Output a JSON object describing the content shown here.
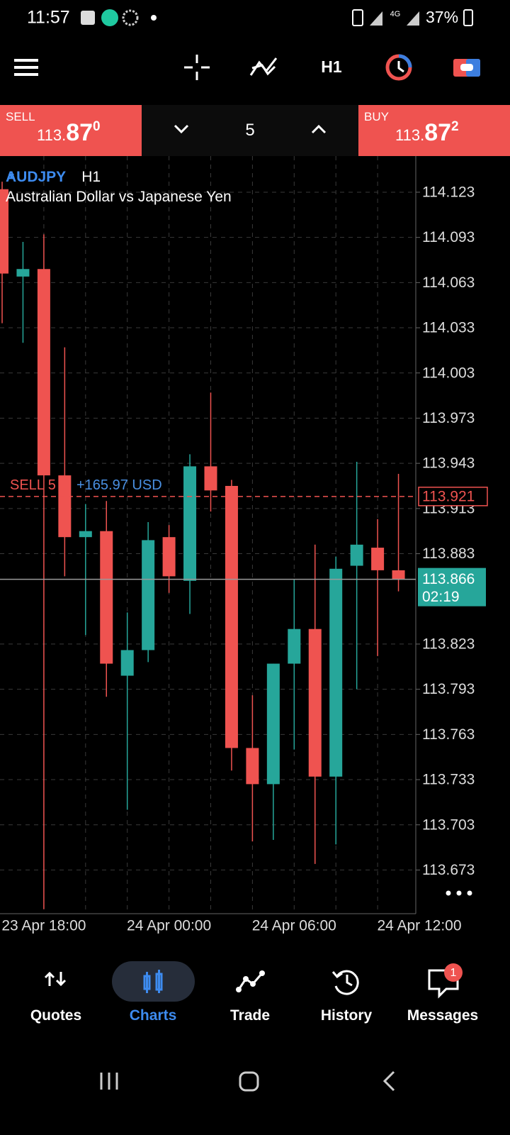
{
  "status_bar": {
    "time": "11:57",
    "network": "4G",
    "battery": "37%"
  },
  "toolbar": {
    "timeframe": "H1"
  },
  "trade_panel": {
    "sell_label": "SELL",
    "sell_price": [
      "113.",
      "87",
      "0"
    ],
    "volume": "5",
    "buy_label": "BUY",
    "buy_price": [
      "113.",
      "87",
      "2"
    ]
  },
  "chart_data": {
    "type": "candlestick",
    "symbol": "AUDJPY",
    "timeframe": "H1",
    "description": "Australian Dollar vs Japanese Yen",
    "categories": [
      null,
      null,
      "23 Apr 18:00",
      null,
      null,
      null,
      null,
      null,
      "24 Apr 00:00",
      null,
      null,
      null,
      null,
      null,
      "24 Apr 06:00",
      null,
      null,
      null,
      null,
      null,
      "24 Apr 12:00"
    ],
    "open": [
      114.125,
      114.067,
      114.072,
      113.935,
      113.894,
      113.898,
      113.802,
      113.819,
      113.894,
      113.865,
      113.941,
      113.928,
      113.754,
      113.73,
      113.81,
      113.833,
      113.735,
      113.875,
      113.887,
      113.872,
      null
    ],
    "high": [
      114.13,
      114.09,
      114.095,
      114.02,
      113.916,
      113.918,
      113.844,
      113.904,
      113.902,
      113.949,
      113.99,
      113.932,
      113.789,
      113.81,
      113.866,
      113.889,
      113.881,
      113.944,
      113.906,
      113.936,
      null
    ],
    "low": [
      114.036,
      114.023,
      113.647,
      113.868,
      113.829,
      113.788,
      113.713,
      113.811,
      113.857,
      113.843,
      113.911,
      113.739,
      113.692,
      113.693,
      113.753,
      113.677,
      113.69,
      113.793,
      113.815,
      113.858,
      null
    ],
    "close": [
      114.069,
      114.072,
      113.935,
      113.894,
      113.898,
      113.81,
      113.819,
      113.892,
      113.868,
      113.941,
      113.925,
      113.754,
      113.73,
      113.81,
      113.833,
      113.735,
      113.873,
      113.889,
      113.872,
      113.866,
      null
    ],
    "up_color": "#26a69a",
    "down_color": "#ef5350",
    "ylim": [
      113.644,
      114.147
    ],
    "yticks": [
      114.123,
      114.093,
      114.063,
      114.033,
      114.003,
      113.973,
      113.943,
      113.913,
      113.883,
      113.823,
      113.793,
      113.763,
      113.733,
      113.703,
      113.673
    ],
    "grid": true,
    "position": {
      "label": "SELL 5",
      "profit": "+165.97 USD",
      "price": 113.921
    },
    "current_price": {
      "value": 113.866,
      "countdown": "02:19"
    }
  },
  "nav": {
    "items": [
      "Quotes",
      "Charts",
      "Trade",
      "History",
      "Messages"
    ],
    "badge": "1"
  }
}
